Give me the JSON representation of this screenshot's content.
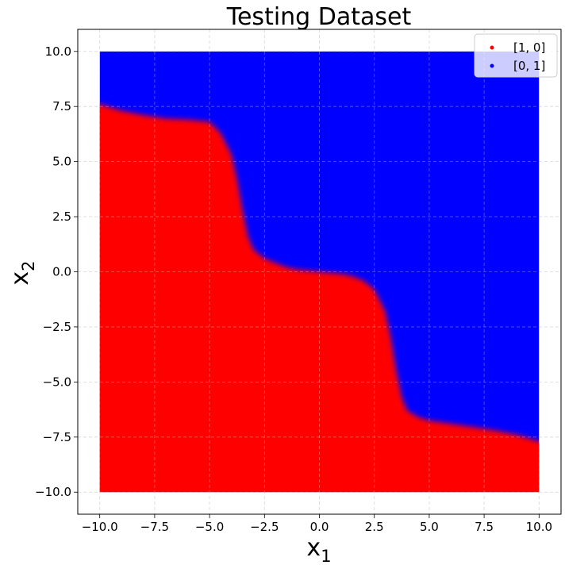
{
  "chart_data": {
    "type": "scatter",
    "title": "Testing Dataset",
    "xlabel": "x",
    "xlabel_sub": "1",
    "ylabel": "x",
    "ylabel_sub": "2",
    "xlim": [
      -11.0,
      11.0
    ],
    "ylim": [
      -11.0,
      11.0
    ],
    "grid": true,
    "legend_position": "top-right",
    "x_ticks": [
      -10.0,
      -7.5,
      -5.0,
      -2.5,
      0.0,
      2.5,
      5.0,
      7.5,
      10.0
    ],
    "y_ticks": [
      -10.0,
      -7.5,
      -5.0,
      -2.5,
      0.0,
      2.5,
      5.0,
      7.5,
      10.0
    ],
    "x_tick_labels": [
      "−10.0",
      "−7.5",
      "−5.0",
      "−2.5",
      "0.0",
      "2.5",
      "5.0",
      "7.5",
      "10.0"
    ],
    "y_tick_labels": [
      "−10.0",
      "−7.5",
      "−5.0",
      "−2.5",
      "0.0",
      "2.5",
      "5.0",
      "7.5",
      "10.0"
    ],
    "series": [
      {
        "name": "[1, 0]",
        "color": "#ff0000",
        "region": "below_boundary"
      },
      {
        "name": "[0, 1]",
        "color": "#0000ff",
        "region": "above_boundary"
      }
    ],
    "point_grid": {
      "x_range": [
        -10.0,
        10.0
      ],
      "y_range": [
        -10.0,
        10.0
      ]
    },
    "decision_boundary": {
      "x": [
        -10.0,
        -9.0,
        -8.0,
        -7.0,
        -6.0,
        -5.0,
        -4.5,
        -4.0,
        -3.75,
        -3.5,
        -3.25,
        -3.0,
        -2.5,
        -2.0,
        -1.5,
        -1.0,
        0.0,
        1.0,
        1.5,
        2.0,
        2.5,
        3.0,
        3.25,
        3.5,
        3.75,
        4.0,
        4.5,
        5.0,
        6.0,
        7.0,
        8.0,
        9.0,
        10.0
      ],
      "y": [
        7.6,
        7.3,
        7.1,
        6.95,
        6.9,
        6.8,
        6.3,
        5.3,
        4.2,
        2.8,
        1.6,
        1.0,
        0.6,
        0.4,
        0.2,
        0.1,
        0.0,
        -0.1,
        -0.2,
        -0.4,
        -0.8,
        -1.8,
        -3.0,
        -4.5,
        -5.7,
        -6.3,
        -6.6,
        -6.75,
        -6.9,
        -7.05,
        -7.2,
        -7.4,
        -7.7
      ]
    }
  }
}
